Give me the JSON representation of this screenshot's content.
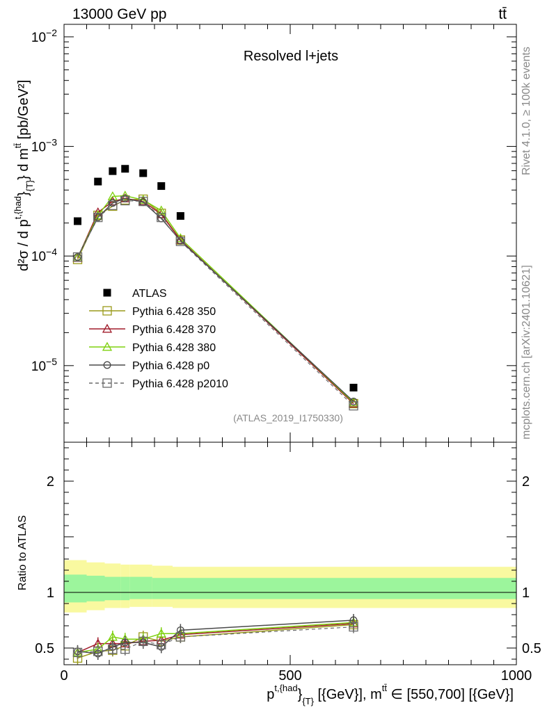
{
  "header": {
    "energy_label": "13000 GeV pp",
    "process_label": "tt̄"
  },
  "side_text": {
    "rivet": "Rivet 4.1.0, ≥ 100k events",
    "site": "mcplots.cern.ch [arXiv:2401.10621]"
  },
  "chart_data": [
    {
      "type": "line",
      "title": "Resolved l+jets",
      "analysis_tag": "(ATLAS_2019_I1750330)",
      "yscale": "log",
      "xlim": [
        0,
        1000
      ],
      "ylim": [
        2e-06,
        0.013
      ],
      "ylabel_parts": {
        "main": "d²σ / d p",
        "sup": "t,{had",
        "close": "}",
        "sub": "{T}",
        "tail": "} d m",
        "tail_sup": "tt̄",
        "unit": " [pb/GeV²]"
      },
      "yticks_major": [
        {
          "value": 0.01,
          "base": "10",
          "exp": "−2"
        },
        {
          "value": 0.001,
          "base": "10",
          "exp": "−3"
        },
        {
          "value": 0.0001,
          "base": "10",
          "exp": "−4"
        },
        {
          "value": 1e-05,
          "base": "10",
          "exp": "−5"
        }
      ],
      "x": [
        30,
        75,
        107.5,
        135,
        175,
        215,
        257.5,
        640
      ],
      "series": [
        {
          "name": "ATLAS",
          "color": "#000000",
          "marker": "filled-square",
          "dashed": false,
          "values": [
            0.000208,
            0.000478,
            0.000595,
            0.000625,
            0.00057,
            0.000435,
            0.000232,
            6.3e-06
          ]
        },
        {
          "name": "Pythia 6.428 350",
          "color": "#9a9a1a",
          "marker": "open-square",
          "dashed": false,
          "values": [
            9.3e-05,
            0.000235,
            0.000285,
            0.000325,
            0.00033,
            0.000245,
            0.00014,
            4.5e-06
          ]
        },
        {
          "name": "Pythia 6.428 370",
          "color": "#a01b2a",
          "marker": "open-triangle",
          "dashed": false,
          "values": [
            9.6e-05,
            0.00025,
            0.000315,
            0.000335,
            0.000315,
            0.00024,
            0.00014,
            4.5e-06
          ]
        },
        {
          "name": "Pythia 6.428 380",
          "color": "#7ed10e",
          "marker": "open-triangle",
          "dashed": false,
          "values": [
            9.7e-05,
            0.000235,
            0.00035,
            0.000355,
            0.000325,
            0.00026,
            0.000145,
            4.6e-06
          ]
        },
        {
          "name": "Pythia 6.428 p0",
          "color": "#4a4a4a",
          "marker": "open-circle",
          "dashed": false,
          "values": [
            9.8e-05,
            0.000225,
            0.000305,
            0.000335,
            0.00031,
            0.00022,
            0.000138,
            4.7e-06
          ]
        },
        {
          "name": "Pythia 6.428 p2010",
          "color": "#6a6a6a",
          "marker": "open-square",
          "dashed": true,
          "values": [
            9.8e-05,
            0.000225,
            0.00029,
            0.00032,
            0.000315,
            0.000225,
            0.000136,
            4.3e-06
          ]
        }
      ]
    },
    {
      "type": "line",
      "title": "",
      "ylabel": "Ratio to ATLAS",
      "xlabel": "p{t,{had}}_{T} [{GeV}], m^{tt̄} ∈ [550,700] [{GeV}]",
      "xlim": [
        0,
        1000
      ],
      "ylim": [
        0.35,
        2.35
      ],
      "xticks": [
        {
          "value": 0,
          "label": "0"
        },
        {
          "value": 500,
          "label": "500"
        },
        {
          "value": 1000,
          "label": "1000"
        }
      ],
      "yticks": [
        {
          "value": 0.5,
          "label": "0.5"
        },
        {
          "value": 1,
          "label": "1"
        },
        {
          "value": 2,
          "label": "2"
        }
      ],
      "uncertainty_band": {
        "bins": [
          0,
          50,
          90,
          125,
          145,
          195,
          240,
          280,
          1000
        ],
        "outer_lo": [
          0.82,
          0.84,
          0.86,
          0.86,
          0.87,
          0.87,
          0.86,
          0.86
        ],
        "outer_hi": [
          1.29,
          1.27,
          1.26,
          1.25,
          1.25,
          1.24,
          1.23,
          1.23
        ],
        "inner_lo": [
          0.91,
          0.92,
          0.93,
          0.93,
          0.94,
          0.94,
          0.94,
          0.94
        ],
        "inner_hi": [
          1.16,
          1.15,
          1.14,
          1.14,
          1.14,
          1.13,
          1.13,
          1.13
        ],
        "outer_color": "#f9f9a0",
        "inner_color": "#9cf59c"
      },
      "x": [
        30,
        75,
        107.5,
        135,
        175,
        215,
        257.5,
        640
      ],
      "series": [
        {
          "name": "Pythia 6.428 350",
          "color": "#9a9a1a",
          "marker": "open-square",
          "dashed": false,
          "values": [
            0.41,
            0.47,
            0.48,
            0.52,
            0.6,
            0.56,
            0.6,
            0.71
          ]
        },
        {
          "name": "Pythia 6.428 370",
          "color": "#a01b2a",
          "marker": "open-triangle",
          "dashed": false,
          "values": [
            0.46,
            0.54,
            0.54,
            0.54,
            0.56,
            0.57,
            0.62,
            0.72
          ]
        },
        {
          "name": "Pythia 6.428 380",
          "color": "#7ed10e",
          "marker": "open-triangle",
          "dashed": false,
          "values": [
            0.46,
            0.49,
            0.6,
            0.58,
            0.58,
            0.63,
            0.63,
            0.73
          ]
        },
        {
          "name": "Pythia 6.428 p0",
          "color": "#4a4a4a",
          "marker": "open-circle",
          "dashed": false,
          "values": [
            0.47,
            0.45,
            0.51,
            0.55,
            0.55,
            0.51,
            0.66,
            0.75
          ]
        },
        {
          "name": "Pythia 6.428 p2010",
          "color": "#6a6a6a",
          "marker": "open-square",
          "dashed": true,
          "values": [
            0.46,
            0.47,
            0.49,
            0.49,
            0.56,
            0.53,
            0.6,
            0.69
          ]
        }
      ]
    }
  ]
}
